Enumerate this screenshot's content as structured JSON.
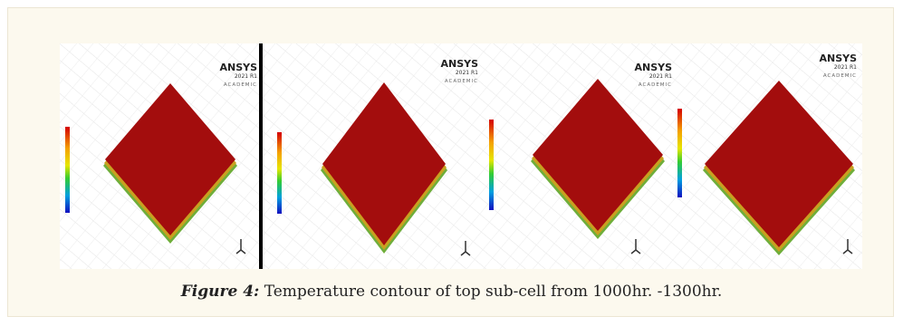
{
  "figure": {
    "panels": [
      {
        "logo": "ANSYS",
        "version": "2021 R1",
        "edition": "ACADEMIC"
      },
      {
        "logo": "ANSYS",
        "version": "2021 R1",
        "edition": "ACADEMIC"
      },
      {
        "logo": "ANSYS",
        "version": "2021 R1",
        "edition": "ACADEMIC"
      },
      {
        "logo": "ANSYS",
        "version": "2021 R1",
        "edition": "ACADEMIC"
      }
    ],
    "caption": {
      "label": "Figure 4:",
      "text": "Temperature contour of top sub-cell from 1000hr. -1300hr."
    }
  }
}
